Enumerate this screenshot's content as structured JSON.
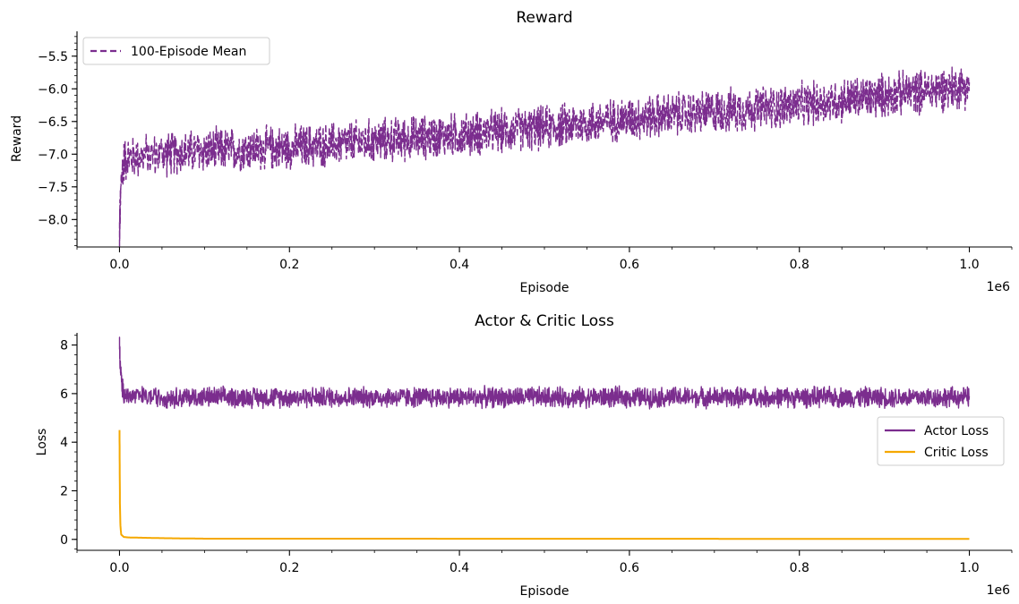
{
  "chart_data": [
    {
      "type": "line",
      "title": "Reward",
      "xlabel": "Episode",
      "ylabel": "Reward",
      "x_offset_label": "1e6",
      "xlim": [
        -50000,
        1050000
      ],
      "ylim": [
        -8.42,
        -5.12
      ],
      "xticks": [
        0.0,
        0.2,
        0.4,
        0.6,
        0.8,
        1.0
      ],
      "xtick_labels": [
        "0.0",
        "0.2",
        "0.4",
        "0.6",
        "0.8",
        "1.0"
      ],
      "yticks": [
        -8.0,
        -7.5,
        -7.0,
        -6.5,
        -6.0,
        -5.5
      ],
      "ytick_labels": [
        "−8.0",
        "−7.5",
        "−7.0",
        "−6.5",
        "−6.0",
        "−5.5"
      ],
      "grid": false,
      "legend_position": "upper-left",
      "series": [
        {
          "name": "100-Episode Mean",
          "color": "#7b2d8e",
          "style": "dashed",
          "x": [
            0,
            2000,
            5000,
            10000,
            50000,
            100000,
            200000,
            300000,
            400000,
            500000,
            600000,
            700000,
            800000,
            900000,
            1000000
          ],
          "values": [
            -8.2,
            -7.4,
            -7.1,
            -7.05,
            -7.0,
            -6.95,
            -6.9,
            -6.8,
            -6.7,
            -6.6,
            -6.45,
            -6.35,
            -6.25,
            -6.1,
            -5.95
          ],
          "band": 0.28
        }
      ]
    },
    {
      "type": "line",
      "title": "Actor & Critic Loss",
      "xlabel": "Episode",
      "ylabel": "Loss",
      "x_offset_label": "1e6",
      "xlim": [
        -50000,
        1050000
      ],
      "ylim": [
        -0.45,
        8.5
      ],
      "xticks": [
        0.0,
        0.2,
        0.4,
        0.6,
        0.8,
        1.0
      ],
      "xtick_labels": [
        "0.0",
        "0.2",
        "0.4",
        "0.6",
        "0.8",
        "1.0"
      ],
      "yticks": [
        0,
        2,
        4,
        6,
        8
      ],
      "ytick_labels": [
        "0",
        "2",
        "4",
        "6",
        "8"
      ],
      "grid": false,
      "legend_position": "center-right",
      "series": [
        {
          "name": "Actor Loss",
          "color": "#7b2d8e",
          "style": "solid",
          "x": [
            0,
            1000,
            3000,
            5000,
            10000,
            50000,
            200000,
            400000,
            600000,
            800000,
            1000000
          ],
          "values": [
            8.0,
            7.0,
            6.3,
            6.0,
            5.9,
            5.85,
            5.85,
            5.85,
            5.85,
            5.85,
            5.85
          ],
          "band": 0.35
        },
        {
          "name": "Critic Loss",
          "color": "#f5a800",
          "style": "solid",
          "x": [
            0,
            500,
            1000,
            2000,
            5000,
            10000,
            50000,
            100000,
            1000000
          ],
          "values": [
            4.5,
            1.5,
            0.6,
            0.2,
            0.1,
            0.08,
            0.05,
            0.03,
            0.02
          ],
          "band": 0
        }
      ]
    }
  ]
}
